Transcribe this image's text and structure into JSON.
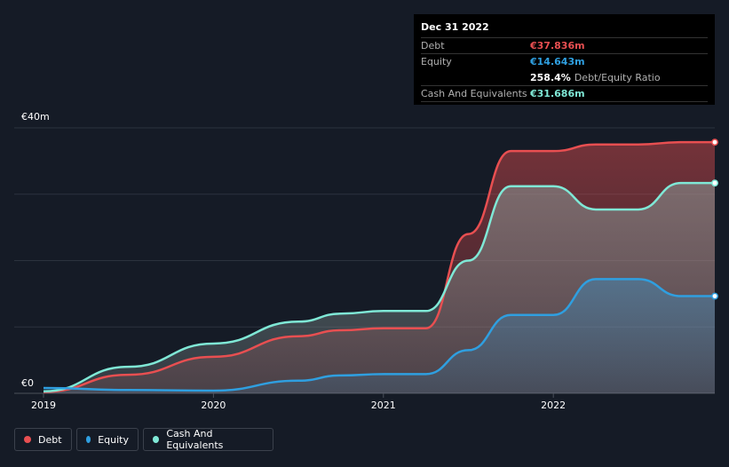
{
  "chart_data": {
    "type": "area",
    "title": "",
    "xlabel": "",
    "ylabel": "",
    "y_axis_labels": [
      "€40m",
      "€0"
    ],
    "ylim": [
      0,
      40
    ],
    "xlim": [
      2019.0,
      2022.95
    ],
    "x_tick_labels": [
      "2019",
      "2020",
      "2021",
      "2022"
    ],
    "x_tick_values": [
      2019,
      2020,
      2021,
      2022
    ],
    "grid": true,
    "series": [
      {
        "name": "Debt",
        "color": "#e84f51",
        "x": [
          2019.0,
          2019.5,
          2020.0,
          2020.5,
          2020.75,
          2021.0,
          2021.25,
          2021.5,
          2021.75,
          2022.0,
          2022.25,
          2022.5,
          2022.75,
          2022.95
        ],
        "values": [
          0.2,
          2.8,
          5.5,
          8.6,
          9.5,
          9.8,
          9.8,
          24.0,
          36.5,
          36.5,
          37.5,
          37.5,
          37.836,
          37.836
        ]
      },
      {
        "name": "Equity",
        "color": "#2f9fe0",
        "x": [
          2019.0,
          2019.5,
          2020.0,
          2020.5,
          2020.75,
          2021.0,
          2021.25,
          2021.5,
          2021.75,
          2022.0,
          2022.25,
          2022.5,
          2022.75,
          2022.95
        ],
        "values": [
          0.8,
          0.5,
          0.4,
          1.9,
          2.7,
          2.9,
          2.9,
          6.5,
          11.8,
          11.8,
          17.2,
          17.2,
          14.643,
          14.643
        ]
      },
      {
        "name": "Cash And Equivalents",
        "color": "#7fe8d6",
        "x": [
          2019.0,
          2019.5,
          2020.0,
          2020.5,
          2020.75,
          2021.0,
          2021.25,
          2021.5,
          2021.75,
          2022.0,
          2022.25,
          2022.5,
          2022.75,
          2022.95
        ],
        "values": [
          0.3,
          4.0,
          7.5,
          10.8,
          12.0,
          12.4,
          12.4,
          20.0,
          31.2,
          31.2,
          27.7,
          27.7,
          31.686,
          31.686
        ]
      }
    ]
  },
  "tooltip": {
    "date": "Dec 31 2022",
    "debt_label": "Debt",
    "debt_value": "€37.836m",
    "equity_label": "Equity",
    "equity_value": "€14.643m",
    "ratio_value": "258.4%",
    "ratio_label": "Debt/Equity Ratio",
    "cash_label": "Cash And Equivalents",
    "cash_value": "€31.686m"
  },
  "legend": {
    "debt": "Debt",
    "equity": "Equity",
    "cash": "Cash And Equivalents"
  },
  "colors": {
    "debt": "#e84f51",
    "equity": "#2f9fe0",
    "cash": "#7fe8d6",
    "background": "#151b26"
  }
}
